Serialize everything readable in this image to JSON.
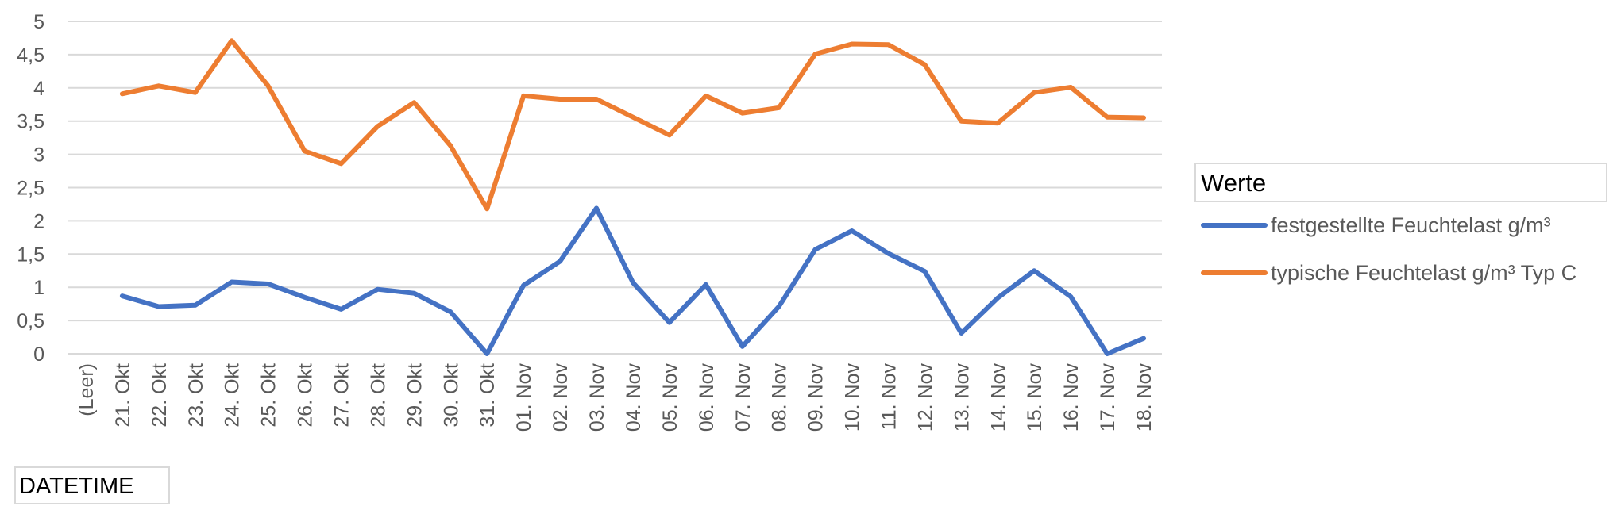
{
  "chart_data": {
    "type": "line",
    "categories": [
      "(Leer)",
      "21. Okt",
      "22. Okt",
      "23. Okt",
      "24. Okt",
      "25. Okt",
      "26. Okt",
      "27. Okt",
      "28. Okt",
      "29. Okt",
      "30. Okt",
      "31. Okt",
      "01. Nov",
      "02. Nov",
      "03. Nov",
      "04. Nov",
      "05. Nov",
      "06. Nov",
      "07. Nov",
      "08. Nov",
      "09. Nov",
      "10. Nov",
      "11. Nov",
      "12. Nov",
      "13. Nov",
      "14. Nov",
      "15. Nov",
      "16. Nov",
      "17. Nov",
      "18. Nov"
    ],
    "series": [
      {
        "name": "festgestellte Feuchtelast g/m³",
        "color": "#4472c4",
        "values": [
          null,
          0.87,
          0.71,
          0.73,
          1.08,
          1.05,
          0.85,
          0.67,
          0.97,
          0.91,
          0.63,
          0.0,
          1.03,
          1.39,
          2.19,
          1.07,
          0.47,
          1.04,
          0.11,
          0.71,
          1.57,
          1.85,
          1.51,
          1.24,
          0.31,
          0.84,
          1.25,
          0.86,
          0.0,
          0.23
        ]
      },
      {
        "name": "typische Feuchtelast g/m³ Typ C",
        "color": "#ed7d31",
        "values": [
          null,
          3.91,
          4.03,
          3.93,
          4.71,
          4.03,
          3.05,
          2.86,
          3.42,
          3.78,
          3.13,
          2.18,
          3.88,
          3.83,
          3.83,
          3.56,
          3.29,
          3.88,
          3.62,
          3.7,
          4.51,
          4.66,
          4.65,
          4.35,
          3.5,
          3.47,
          3.93,
          4.01,
          3.56,
          3.55
        ]
      }
    ],
    "yticks": [
      "0",
      "0,5",
      "1",
      "1,5",
      "2",
      "2,5",
      "3",
      "3,5",
      "4",
      "4,5",
      "5"
    ],
    "ylim": [
      0,
      5
    ],
    "grid": true,
    "legend_position": "right",
    "legend_title": "Werte",
    "field_button": "DATETIME"
  }
}
